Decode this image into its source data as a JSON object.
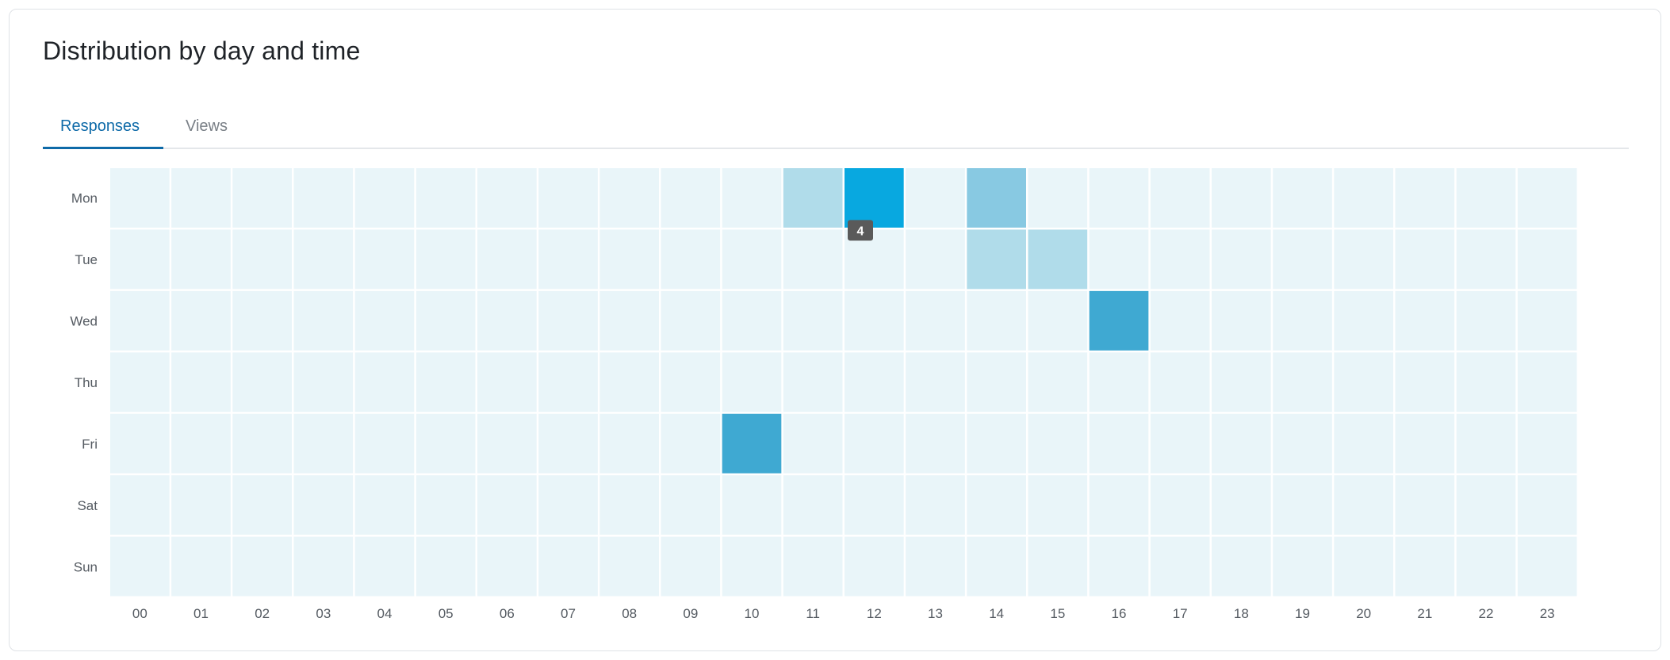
{
  "card": {
    "title": "Distribution by day and time"
  },
  "tabs": [
    {
      "label": "Responses",
      "active": true
    },
    {
      "label": "Views",
      "active": false
    }
  ],
  "colors": {
    "accent": "#0e6aa8",
    "empty_cell": "#e9f5f9",
    "tooltip_bg": "#5a5a5a"
  },
  "chart_data": {
    "type": "heatmap",
    "title": "Distribution by day and time",
    "y_categories": [
      "Mon",
      "Tue",
      "Wed",
      "Thu",
      "Fri",
      "Sat",
      "Sun"
    ],
    "x_categories": [
      "00",
      "01",
      "02",
      "03",
      "04",
      "05",
      "06",
      "07",
      "08",
      "09",
      "10",
      "11",
      "12",
      "13",
      "14",
      "15",
      "16",
      "17",
      "18",
      "19",
      "20",
      "21",
      "22",
      "23"
    ],
    "cells": [
      {
        "day": "Mon",
        "hour": "11",
        "value": 1
      },
      {
        "day": "Mon",
        "hour": "12",
        "value": 4
      },
      {
        "day": "Mon",
        "hour": "14",
        "value": 2
      },
      {
        "day": "Tue",
        "hour": "14",
        "value": 1
      },
      {
        "day": "Tue",
        "hour": "15",
        "value": 1
      },
      {
        "day": "Wed",
        "hour": "16",
        "value": 3
      },
      {
        "day": "Fri",
        "hour": "10",
        "value": 3
      }
    ],
    "max_value": 4,
    "tooltip": {
      "day": "Mon",
      "hour": "12",
      "text": "4"
    },
    "color_scale": {
      "0": "#e9f5f9",
      "1": "#b0dcea",
      "2": "#88c9e2",
      "3": "#3fa9d2",
      "4": "#08a8e0"
    }
  }
}
